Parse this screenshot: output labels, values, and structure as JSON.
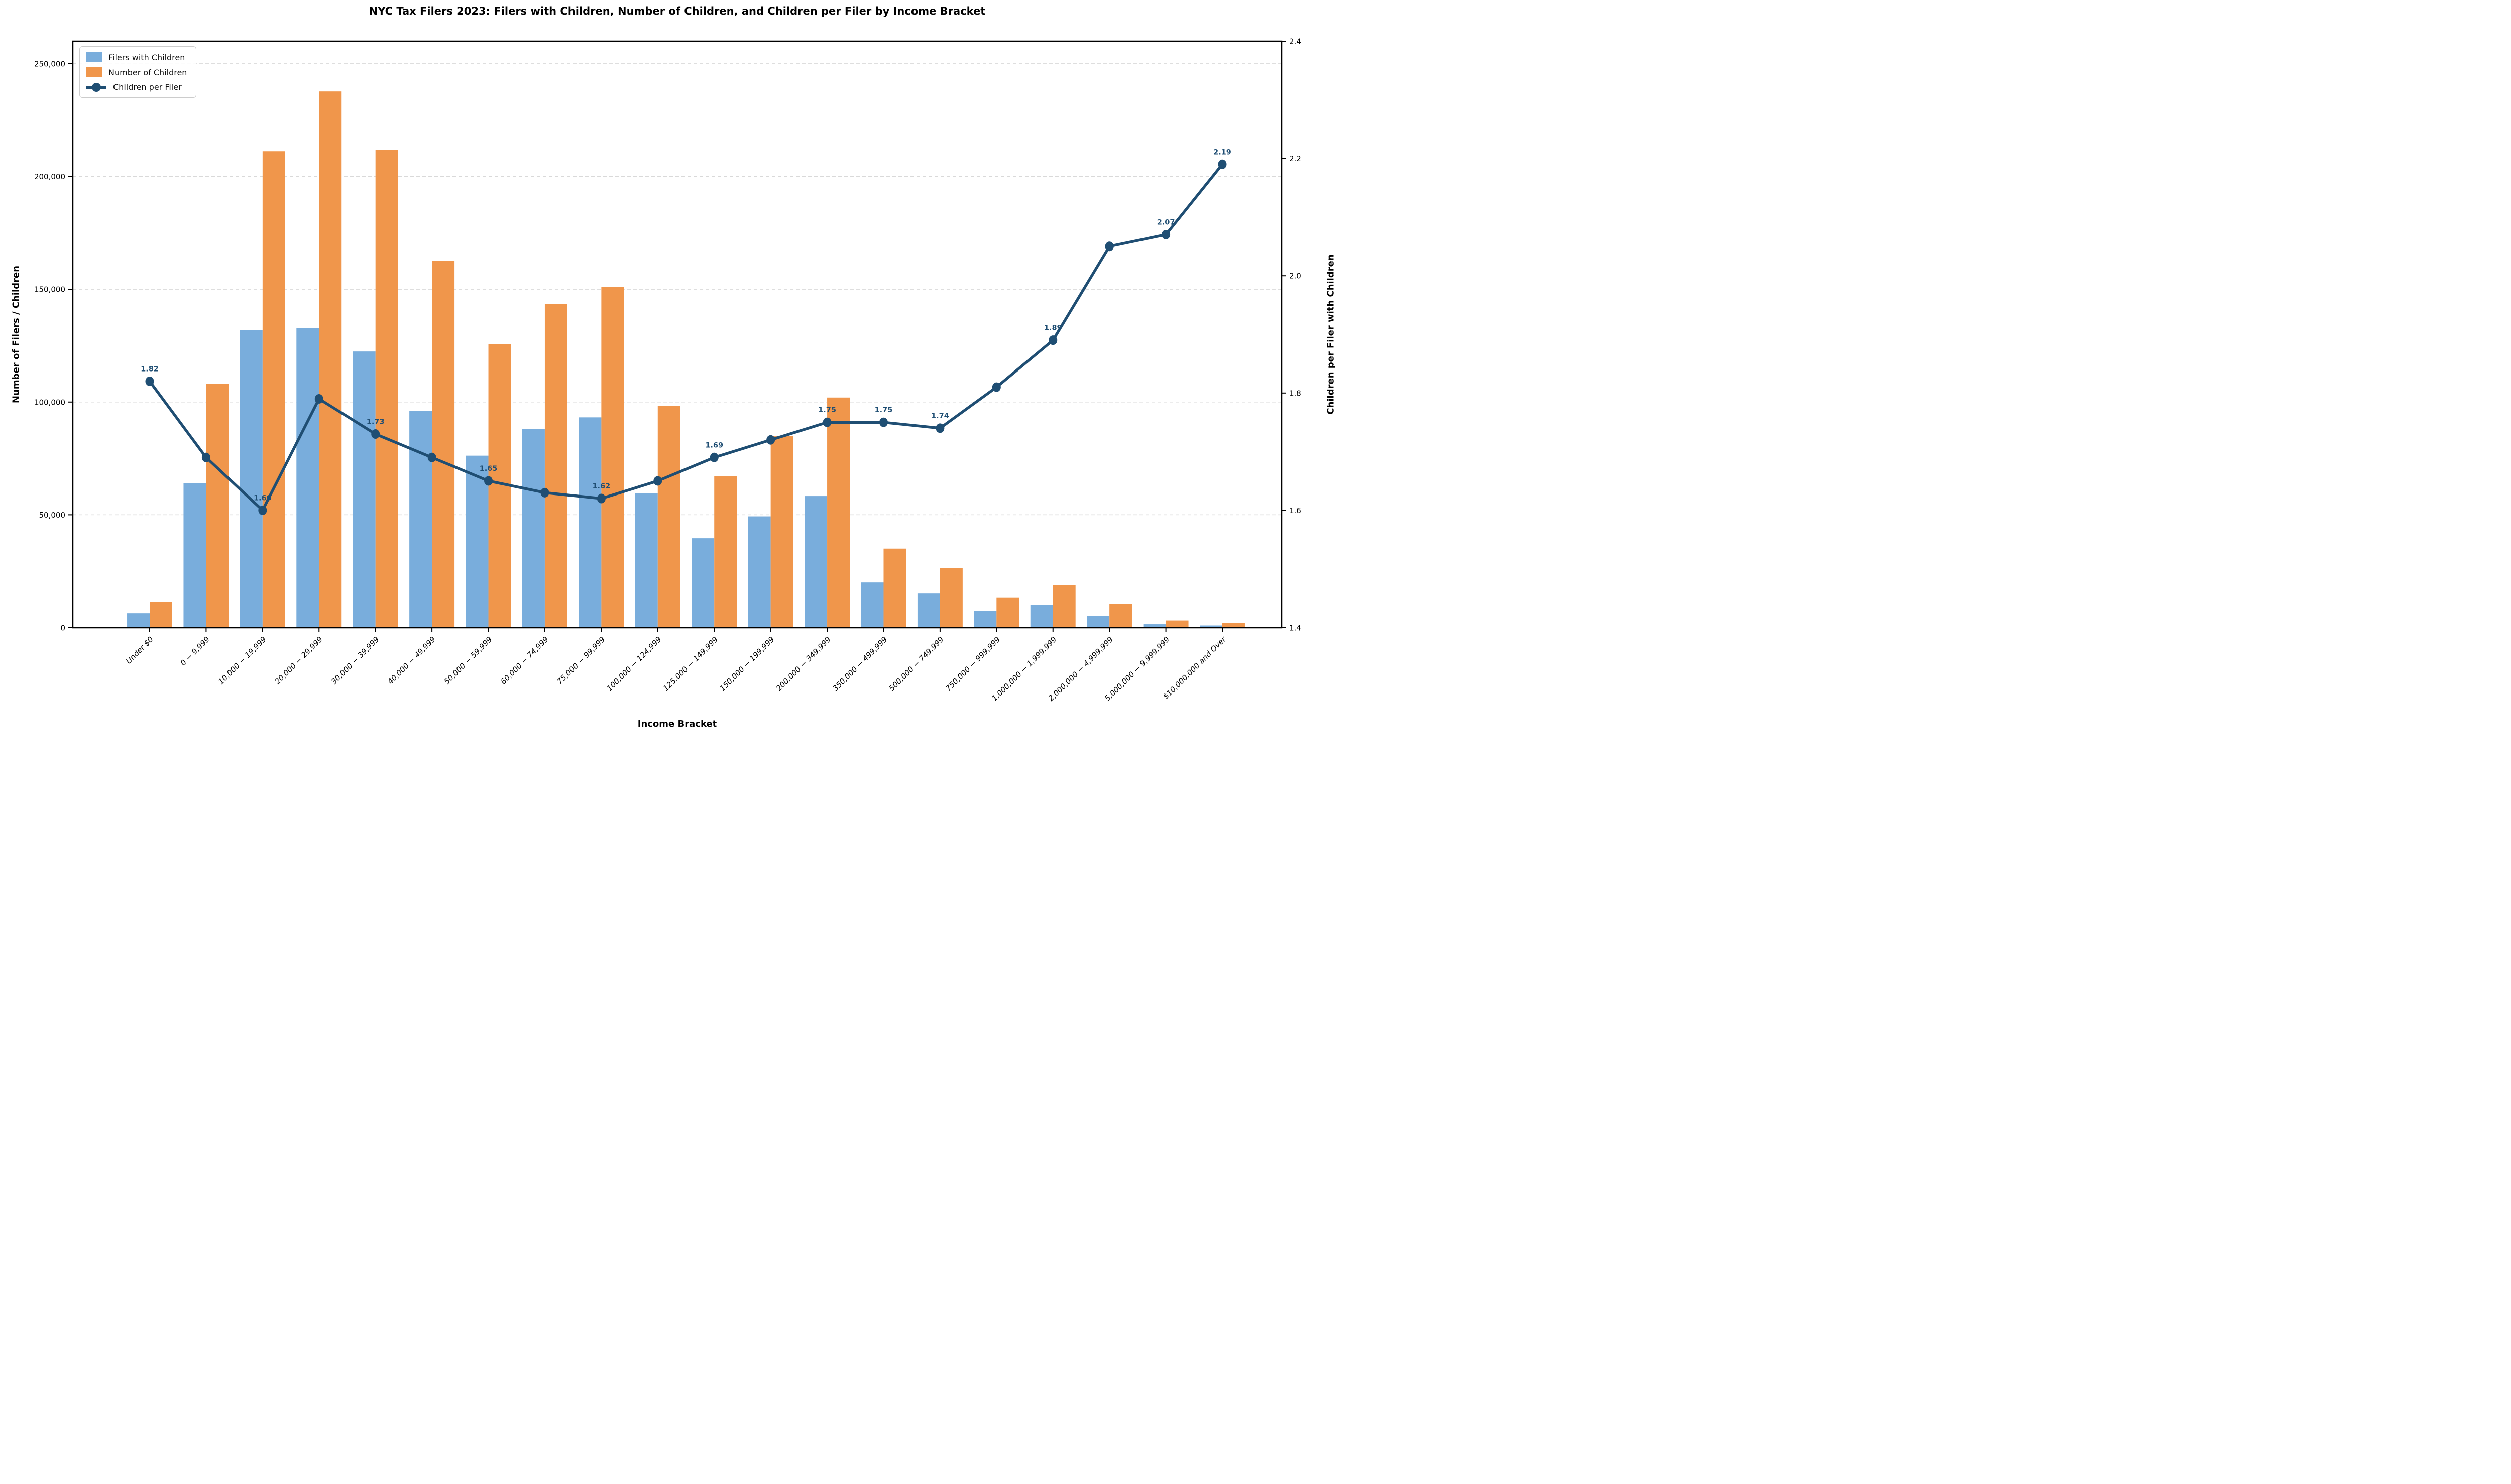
{
  "title": "NYC Tax Filers 2023: Filers with Children, Number of Children, and Children per Filer by Income Bracket",
  "axes": {
    "x_label": "Income Bracket",
    "y_left_label": "Number of Filers / Children",
    "y_right_label": "Children per Filer with Children",
    "y_left_ticks": [
      "0",
      "50,000",
      "100,000",
      "150,000",
      "200,000",
      "250,000"
    ],
    "y_right_ticks": [
      "1.4",
      "1.6",
      "1.8",
      "2.0",
      "2.2",
      "2.4"
    ]
  },
  "legend": {
    "position": "upper-left",
    "items": [
      {
        "label": "Filers with Children",
        "color": "#79ADDC",
        "marker": "bar-swatch"
      },
      {
        "label": "Number of Children",
        "color": "#F0964B",
        "marker": "bar-swatch"
      },
      {
        "label": "Children per Filer",
        "color": "#1F4E73",
        "marker": "line-with-dot"
      }
    ]
  },
  "chart_data": {
    "type": "combo-bar-line",
    "title": "NYC Tax Filers 2023: Filers with Children, Number of Children, and Children per Filer by Income Bracket",
    "xlabel": "Income Bracket",
    "ylabel_left": "Number of Filers / Children",
    "ylabel_right": "Children per Filer with Children",
    "grid": "horizontal-dashed",
    "grid_color": "#D9D9D9",
    "legend_position": "upper-left",
    "categories": [
      "Under $0",
      "0 − 9,999",
      "10,000 − 19,999",
      "20,000 − 29,999",
      "30,000 − 39,999",
      "40,000 − 49,999",
      "50,000 − 59,999",
      "60,000 − 74,999",
      "75,000 − 99,999",
      "100,000 − 124,999",
      "125,000 − 149,999",
      "150,000 − 199,999",
      "200,000 − 349,999",
      "350,000 − 499,999",
      "500,000 − 749,999",
      "750,000 − 999,999",
      "1,000,000 − 1,999,999",
      "2,000,000 − 4,999,999",
      "5,000,000 − 9,999,999",
      "$10,000,000 and Over"
    ],
    "y_left": {
      "min": 0,
      "max": 260000,
      "tick_step": 50000,
      "tick_max": 250000
    },
    "y_right": {
      "min": 1.4,
      "max": 2.4,
      "tick_step": 0.2
    },
    "series": [
      {
        "name": "Filers with Children",
        "type": "bar",
        "axis": "left",
        "color": "#79ADDC",
        "values": [
          6200,
          64000,
          132000,
          132800,
          122400,
          96000,
          76200,
          88000,
          93200,
          59500,
          39600,
          49300,
          58300,
          20000,
          15100,
          7300,
          10000,
          5000,
          1550,
          1000
        ]
      },
      {
        "name": "Number of Children",
        "type": "bar",
        "axis": "left",
        "color": "#F0964B",
        "values": [
          11300,
          108000,
          211200,
          237700,
          211800,
          162500,
          125700,
          143400,
          151000,
          98200,
          67000,
          84800,
          102000,
          35000,
          26300,
          13200,
          18900,
          10250,
          3210,
          2190
        ]
      },
      {
        "name": "Children per Filer",
        "type": "line",
        "axis": "right",
        "color": "#1F4E73",
        "values": [
          1.82,
          1.69,
          1.6,
          1.79,
          1.73,
          1.69,
          1.65,
          1.63,
          1.62,
          1.65,
          1.69,
          1.72,
          1.75,
          1.75,
          1.74,
          1.81,
          1.89,
          2.05,
          2.07,
          2.19
        ],
        "point_labels": [
          "1.82",
          null,
          "1.60",
          null,
          "1.73",
          null,
          "1.65",
          null,
          "1.62",
          null,
          "1.69",
          null,
          "1.75",
          "1.75",
          "1.74",
          null,
          "1.89",
          null,
          "2.07",
          "2.19"
        ]
      }
    ]
  }
}
